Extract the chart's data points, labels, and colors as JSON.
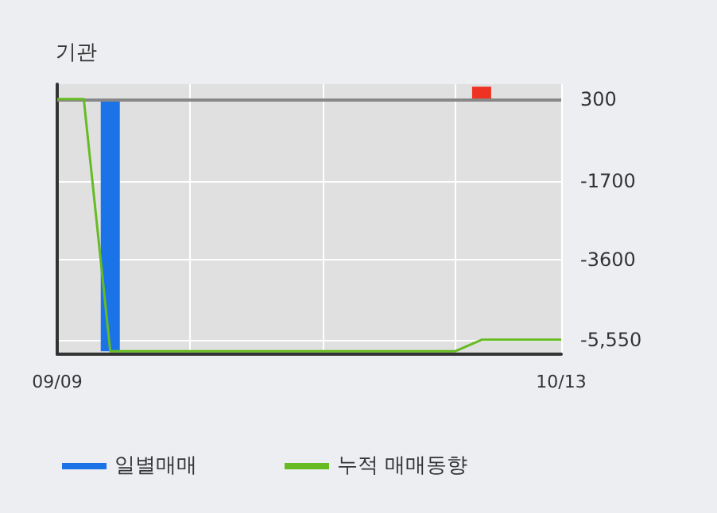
{
  "chart_data": {
    "type": "bar",
    "title": "기관",
    "categories": [
      "09/09",
      null,
      null,
      null,
      null,
      null,
      null,
      null,
      null,
      null,
      null,
      null,
      null,
      null,
      null,
      null,
      null,
      null,
      null,
      "10/13"
    ],
    "series": [
      {
        "name": "일별매매",
        "colors": [
          "#1a74e8",
          "#1a74e8",
          "#1a74e8",
          "#1a74e8",
          "#1a74e8",
          "#1a74e8",
          "#1a74e8",
          "#1a74e8",
          "#1a74e8",
          "#1a74e8",
          "#1a74e8",
          "#1a74e8",
          "#1a74e8",
          "#1a74e8",
          "#1a74e8",
          "#1a74e8",
          "#ee3322",
          "#1a74e8",
          "#1a74e8",
          "#1a74e8"
        ],
        "values": [
          null,
          null,
          -6130,
          null,
          null,
          null,
          null,
          null,
          null,
          null,
          null,
          null,
          null,
          null,
          null,
          null,
          300,
          null,
          null,
          null
        ],
        "base": [
          null,
          null,
          300,
          null,
          null,
          null,
          null,
          null,
          null,
          null,
          null,
          null,
          null,
          null,
          null,
          null,
          300,
          null,
          null,
          null
        ]
      },
      {
        "name": "누적 매매동향",
        "type": "line",
        "color": "#66bb22",
        "values": [
          300,
          300,
          -5830,
          -5830,
          -5830,
          -5830,
          -5830,
          -5830,
          -5830,
          -5830,
          -5830,
          -5830,
          -5830,
          -5830,
          -5830,
          -5830,
          -5550,
          -5550,
          -5550,
          -5550
        ]
      }
    ],
    "ylim": [
      -5900,
      660
    ],
    "yticks": [
      300,
      -1700,
      -3600,
      {
        "value": -5550,
        "label": "-5,550"
      }
    ],
    "ref_lines": [
      {
        "axis": "y",
        "value": 300,
        "color": "#888888"
      }
    ],
    "grid": true,
    "legend": "bottom",
    "marker": "none"
  }
}
